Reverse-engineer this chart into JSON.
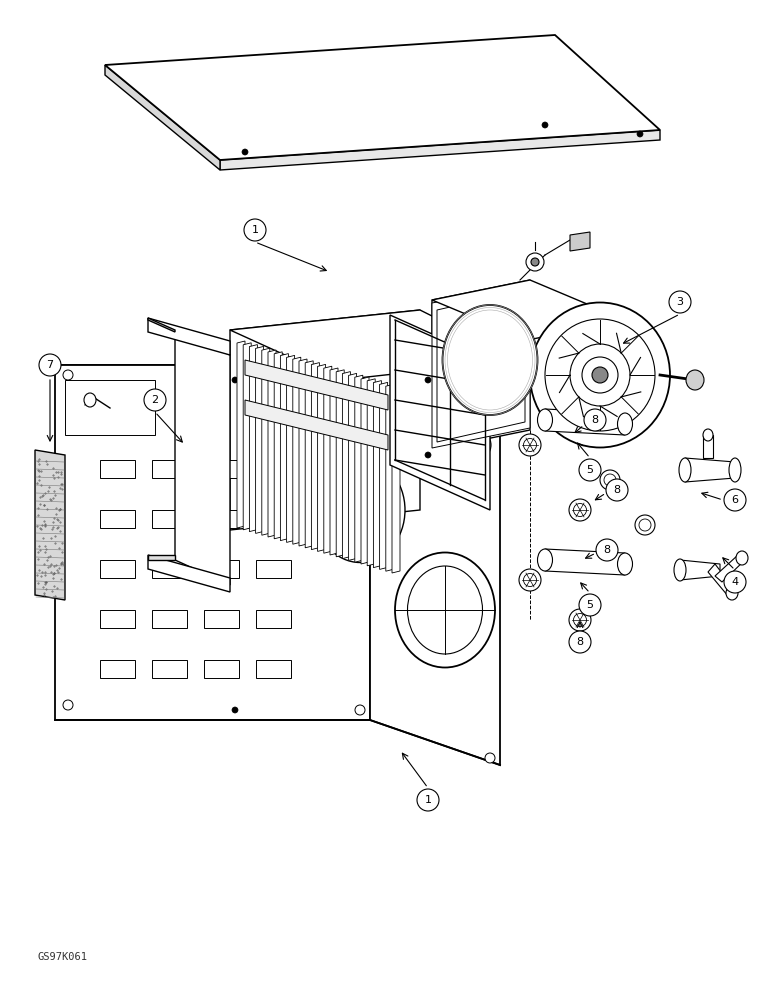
{
  "background_color": "#ffffff",
  "line_color": "#000000",
  "figure_width": 7.72,
  "figure_height": 10.0,
  "dpi": 100,
  "watermark": "GS97K061"
}
